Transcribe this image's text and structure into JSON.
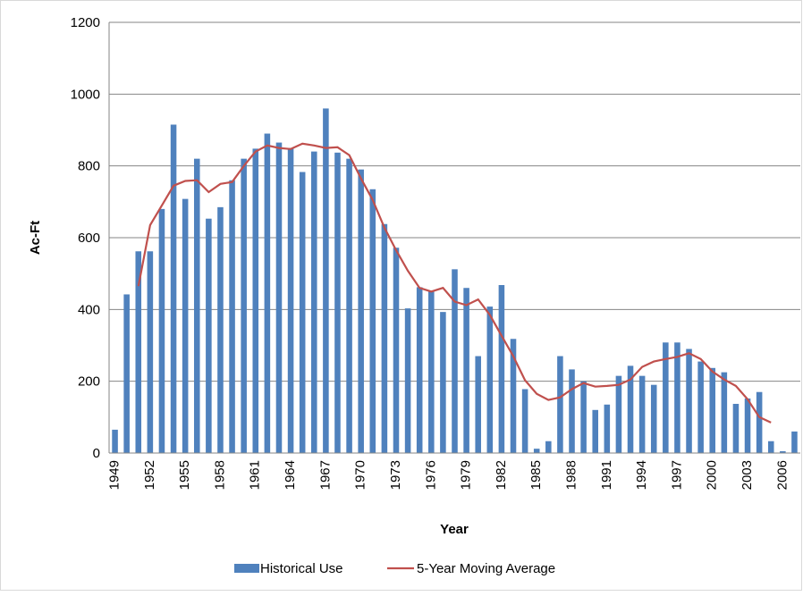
{
  "chart_data": {
    "type": "bar-line",
    "y_label": "Ac-Ft",
    "x_label": "Year",
    "categories": [
      "1949",
      null,
      null,
      "1952",
      null,
      null,
      "1955",
      null,
      null,
      "1958",
      null,
      null,
      "1961",
      null,
      null,
      "1964",
      null,
      null,
      "1967",
      null,
      null,
      "1970",
      null,
      null,
      "1973",
      null,
      null,
      "1976",
      null,
      null,
      "1979",
      null,
      null,
      "1982",
      null,
      null,
      "1985",
      null,
      null,
      "1988",
      null,
      null,
      "1991",
      null,
      null,
      "1994",
      null,
      null,
      "1997",
      null,
      null,
      "2000",
      null,
      null,
      "2003",
      null,
      null,
      "2006",
      null
    ],
    "series": [
      {
        "name": "Historical Use",
        "type": "bar",
        "color": "#4f81bd",
        "values": [
          65,
          442,
          562,
          562,
          680,
          915,
          708,
          820,
          653,
          685,
          760,
          820,
          848,
          890,
          865,
          850,
          783,
          840,
          960,
          837,
          820,
          790,
          735,
          638,
          572,
          403,
          462,
          452,
          393,
          512,
          460,
          270,
          408,
          468,
          318,
          178,
          12,
          33,
          270,
          233,
          200,
          120,
          135,
          215,
          243,
          215,
          190,
          308,
          308,
          290,
          255,
          237,
          225,
          137,
          152,
          170,
          33,
          5,
          60
        ]
      },
      {
        "name": "5-Year Moving Average",
        "type": "line",
        "color": "#c0504d",
        "values": [
          null,
          null,
          465,
          635,
          690,
          745,
          758,
          760,
          727,
          750,
          755,
          800,
          840,
          857,
          850,
          847,
          862,
          857,
          850,
          852,
          830,
          765,
          705,
          628,
          565,
          508,
          460,
          450,
          460,
          422,
          412,
          428,
          385,
          327,
          270,
          203,
          165,
          148,
          155,
          178,
          195,
          185,
          187,
          190,
          205,
          240,
          255,
          262,
          268,
          278,
          262,
          227,
          205,
          187,
          150,
          100,
          85,
          null,
          null
        ]
      }
    ],
    "ylim": [
      0,
      1200
    ],
    "yticks": [
      0,
      200,
      400,
      600,
      800,
      1000,
      1200
    ],
    "grid": true,
    "legend": "bottom"
  }
}
